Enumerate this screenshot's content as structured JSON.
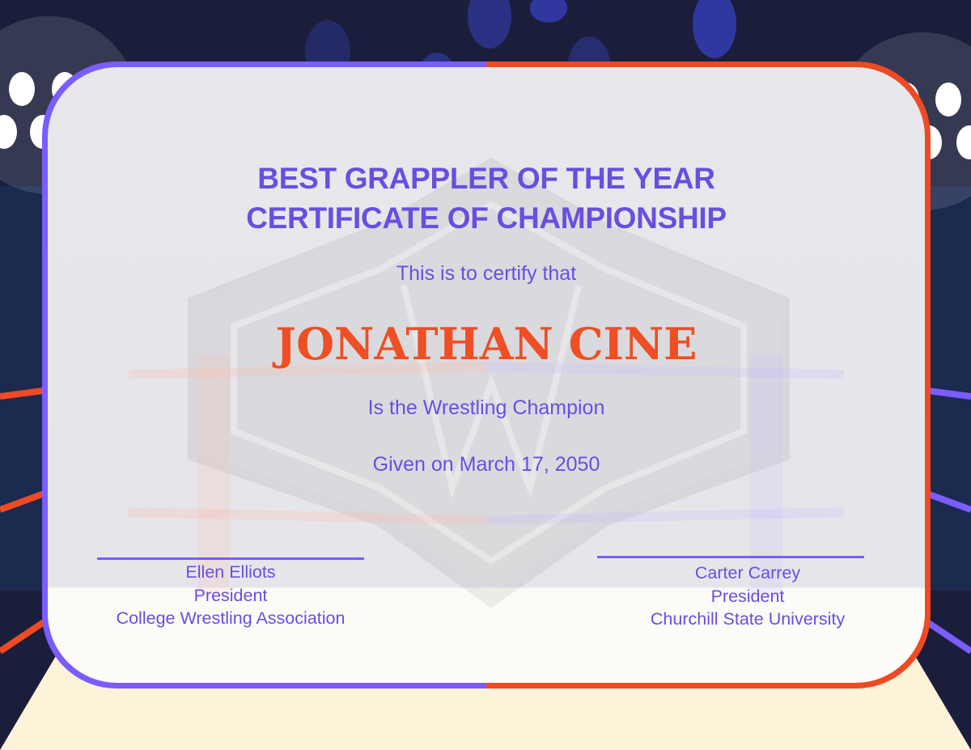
{
  "certificate": {
    "title_line1": "BEST GRAPPLER OF THE YEAR",
    "title_line2": "CERTIFICATE OF CHAMPIONSHIP",
    "intro": "This is to certify that",
    "recipient": "JONATHAN CINE",
    "award": "Is the Wrestling Champion",
    "date": "Given on March 17, 2050",
    "signatories": [
      {
        "name": "Ellen Elliots",
        "role": "President",
        "organization": "College Wrestling Association"
      },
      {
        "name": "Carter Carrey",
        "role": "President",
        "organization": "Churchill State University"
      }
    ]
  },
  "colors": {
    "background": "#1b1e3b",
    "accent_purple": "#7b5cff",
    "accent_orange": "#ee4a24",
    "text_purple": "#6a4ee0",
    "floor": "#fdf3d8"
  }
}
